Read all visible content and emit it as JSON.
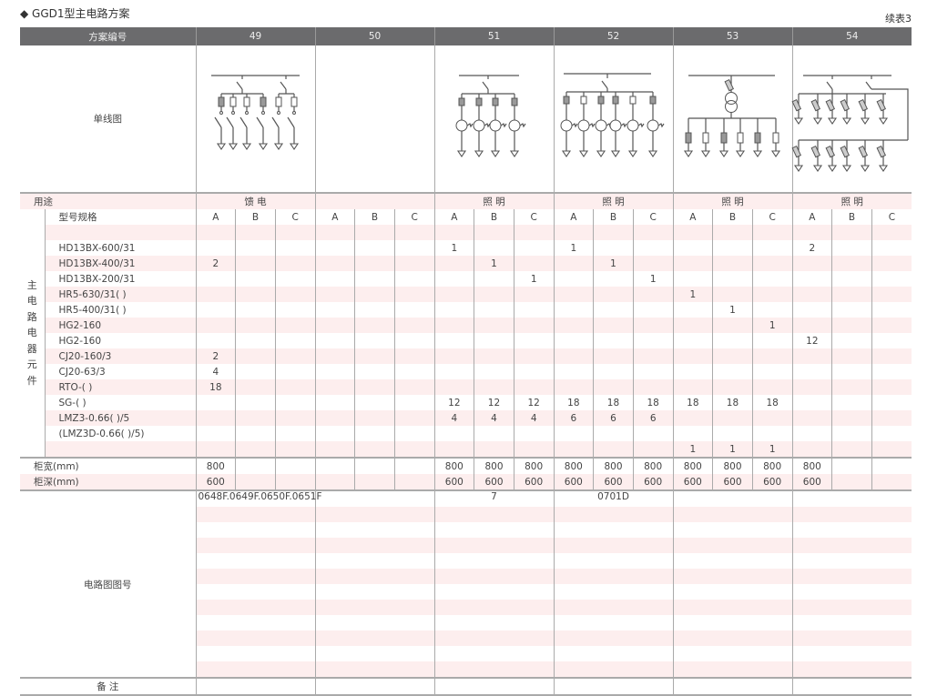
{
  "title": "◆ GGD1型主电路方案",
  "continued": "续表3",
  "header": {
    "label": "方案编号",
    "schemes": [
      "49",
      "50",
      "51",
      "52",
      "53",
      "54"
    ]
  },
  "diagram_row": {
    "label": "单线图",
    "diagrams": [
      "feeder-6-switch-diagram",
      "",
      "lighting-4-ct-diagram",
      "lighting-6-ct-diagram",
      "transformer-6-fuse-diagram",
      "lighting-12-fuse-diagram"
    ]
  },
  "usage": {
    "label": "用途",
    "values": [
      "馈 电",
      "",
      "照 明",
      "照 明",
      "照 明",
      "照 明"
    ]
  },
  "components": {
    "side_label": "主电路电器元件",
    "spec_label": "型号规格",
    "subcols": [
      "A",
      "B",
      "C"
    ],
    "rows": [
      {
        "label": "",
        "values": [
          "",
          "",
          "",
          "",
          "",
          "",
          "",
          "",
          "",
          "",
          "",
          "",
          "",
          "",
          "",
          "",
          "",
          ""
        ]
      },
      {
        "label": "HD13BX-600/31",
        "values": [
          "",
          "",
          "",
          "",
          "",
          "",
          "1",
          "",
          "",
          "1",
          "",
          "",
          "",
          "",
          "",
          "2",
          "",
          ""
        ]
      },
      {
        "label": "HD13BX-400/31",
        "values": [
          "2",
          "",
          "",
          "",
          "",
          "",
          "",
          "1",
          "",
          "",
          "1",
          "",
          "",
          "",
          "",
          "",
          "",
          ""
        ]
      },
      {
        "label": "HD13BX-200/31",
        "values": [
          "",
          "",
          "",
          "",
          "",
          "",
          "",
          "",
          "1",
          "",
          "",
          "1",
          "",
          "",
          "",
          "",
          "",
          ""
        ]
      },
      {
        "label": "HR5-630/31( )",
        "values": [
          "",
          "",
          "",
          "",
          "",
          "",
          "",
          "",
          "",
          "",
          "",
          "",
          "1",
          "",
          "",
          "",
          "",
          ""
        ]
      },
      {
        "label": "HR5-400/31( )",
        "values": [
          "",
          "",
          "",
          "",
          "",
          "",
          "",
          "",
          "",
          "",
          "",
          "",
          "",
          "1",
          "",
          "",
          "",
          ""
        ]
      },
      {
        "label": "HG2-160",
        "values": [
          "",
          "",
          "",
          "",
          "",
          "",
          "",
          "",
          "",
          "",
          "",
          "",
          "",
          "",
          "1",
          "",
          "",
          ""
        ]
      },
      {
        "label": "HG2-160",
        "values": [
          "",
          "",
          "",
          "",
          "",
          "",
          "",
          "",
          "",
          "",
          "",
          "",
          "",
          "",
          "",
          "12",
          "",
          ""
        ]
      },
      {
        "label": "CJ20-160/3",
        "values": [
          "2",
          "",
          "",
          "",
          "",
          "",
          "",
          "",
          "",
          "",
          "",
          "",
          "",
          "",
          "",
          "",
          "",
          ""
        ]
      },
      {
        "label": "CJ20-63/3",
        "values": [
          "4",
          "",
          "",
          "",
          "",
          "",
          "",
          "",
          "",
          "",
          "",
          "",
          "",
          "",
          "",
          "",
          "",
          ""
        ]
      },
      {
        "label": "RTO-( )",
        "values": [
          "18",
          "",
          "",
          "",
          "",
          "",
          "",
          "",
          "",
          "",
          "",
          "",
          "",
          "",
          "",
          "",
          "",
          ""
        ]
      },
      {
        "label": "SG-( )",
        "values": [
          "",
          "",
          "",
          "",
          "",
          "",
          "12",
          "12",
          "12",
          "18",
          "18",
          "18",
          "18",
          "18",
          "18",
          "",
          "",
          ""
        ]
      },
      {
        "label": "LMZ3-0.66( )/5",
        "values": [
          "",
          "",
          "",
          "",
          "",
          "",
          "4",
          "4",
          "4",
          "6",
          "6",
          "6",
          "",
          "",
          "",
          "",
          "",
          ""
        ]
      },
      {
        "label": "(LMZ3D-0.66( )/5)",
        "values": [
          "",
          "",
          "",
          "",
          "",
          "",
          "",
          "",
          "",
          "",
          "",
          "",
          "",
          "",
          "",
          "",
          "",
          ""
        ]
      },
      {
        "label": "",
        "values": [
          "",
          "",
          "",
          "",
          "",
          "",
          "",
          "",
          "",
          "",
          "",
          "",
          "1",
          "1",
          "1",
          "",
          "",
          ""
        ]
      }
    ]
  },
  "cabinet_width": {
    "label": "柜宽(mm)",
    "values": [
      "800",
      "",
      "",
      "",
      "",
      "",
      "800",
      "800",
      "800",
      "800",
      "800",
      "800",
      "800",
      "800",
      "800",
      "800",
      "",
      ""
    ]
  },
  "cabinet_depth": {
    "label": "柜深(mm)",
    "values": [
      "600",
      "",
      "",
      "",
      "",
      "",
      "600",
      "600",
      "600",
      "600",
      "600",
      "600",
      "600",
      "600",
      "600",
      "600",
      "",
      ""
    ]
  },
  "circuit_no": {
    "label": "电路图图号",
    "values": [
      "0648F.0649F.0650F.0651F",
      "",
      "7",
      "0701D",
      "",
      ""
    ]
  },
  "remarks": {
    "label": "备 注"
  },
  "colors": {
    "header_bg": "#6b6b6d",
    "stripe": "#fdeeee",
    "grid": "#aaaaaa"
  }
}
